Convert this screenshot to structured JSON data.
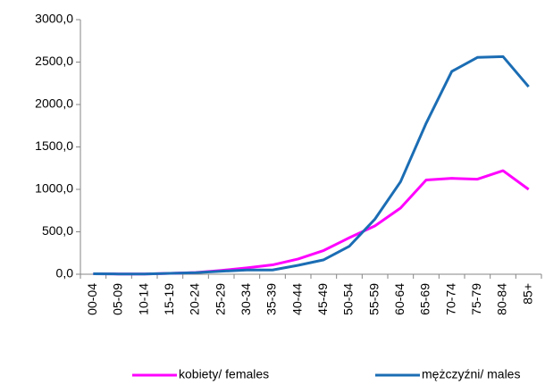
{
  "chart_data": {
    "type": "line",
    "categories": [
      "00-04",
      "05-09",
      "10-14",
      "15-19",
      "20-24",
      "25-29",
      "30-34",
      "35-39",
      "40-44",
      "45-49",
      "50-54",
      "55-59",
      "60-64",
      "65-69",
      "70-74",
      "75-79",
      "80-84",
      "85+"
    ],
    "series": [
      {
        "name": "kobiety/ females",
        "color": "#ff00ff",
        "values": [
          5,
          3,
          3,
          10,
          20,
          45,
          75,
          110,
          180,
          280,
          430,
          570,
          780,
          1110,
          1130,
          1120,
          1220,
          1000
        ]
      },
      {
        "name": "mężczyźni/ males",
        "color": "#1b6db4",
        "values": [
          5,
          3,
          3,
          10,
          18,
          35,
          50,
          50,
          105,
          170,
          330,
          650,
          1090,
          1780,
          2390,
          2555,
          2565,
          2210
        ]
      }
    ],
    "ylim": [
      0,
      3000
    ],
    "yticks": [
      {
        "value": 0,
        "label": "0,0"
      },
      {
        "value": 500,
        "label": "500,0"
      },
      {
        "value": 1000,
        "label": "1000,0"
      },
      {
        "value": 1500,
        "label": "1500,0"
      },
      {
        "value": 2000,
        "label": "2000,0"
      },
      {
        "value": 2500,
        "label": "2500,0"
      },
      {
        "value": 3000,
        "label": "3000,0"
      }
    ],
    "legend": "bottom"
  }
}
